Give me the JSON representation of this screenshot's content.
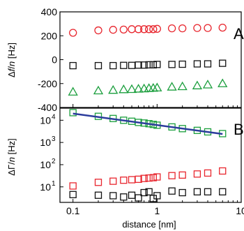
{
  "chart_data": [
    {
      "type": "scatter",
      "panel_label": "A",
      "ylabel_pre": "Δ",
      "ylabel_var": "f",
      "ylabel_mid": "/",
      "ylabel_var2": "n",
      "ylabel_unit": " [Hz]",
      "ylim": [
        -400,
        400
      ],
      "yticks": [
        400,
        200,
        0,
        -200,
        -400
      ],
      "yticklabels": [
        "400",
        "200",
        "0",
        "-200",
        "-400"
      ],
      "xscale": "log",
      "xlim": [
        0.07,
        10
      ],
      "grid": false,
      "series": [
        {
          "marker": "circle",
          "color": "#e8262e",
          "x": [
            0.1,
            0.2,
            0.3,
            0.4,
            0.5,
            0.6,
            0.7,
            0.8,
            0.9,
            1.0,
            1.5,
            2.0,
            3.0,
            4.0,
            6.0
          ],
          "y": [
            225,
            245,
            250,
            252,
            255,
            255,
            255,
            255,
            255,
            258,
            262,
            262,
            265,
            265,
            268
          ]
        },
        {
          "marker": "square",
          "color": "#111111",
          "x": [
            0.1,
            0.2,
            0.3,
            0.4,
            0.5,
            0.6,
            0.7,
            0.8,
            0.9,
            1.0,
            1.5,
            2.0,
            3.0,
            4.0,
            6.0
          ],
          "y": [
            -50,
            -50,
            -50,
            -48,
            -48,
            -45,
            -45,
            -43,
            -43,
            -40,
            -40,
            -38,
            -35,
            -35,
            -30
          ]
        },
        {
          "marker": "triangle",
          "color": "#1a9e3c",
          "x": [
            0.1,
            0.2,
            0.3,
            0.4,
            0.5,
            0.6,
            0.7,
            0.8,
            0.9,
            1.0,
            1.5,
            2.0,
            3.0,
            4.0,
            6.0
          ],
          "y": [
            -270,
            -260,
            -255,
            -250,
            -248,
            -245,
            -243,
            -240,
            -238,
            -235,
            -228,
            -225,
            -218,
            -210,
            -200
          ]
        }
      ]
    },
    {
      "type": "scatter",
      "panel_label": "B",
      "ylabel_pre": "ΔΓ/",
      "ylabel_var": "n",
      "ylabel_unit": " [Hz]",
      "yscale": "log",
      "ylim": [
        2,
        35000
      ],
      "yticks": [
        10,
        100,
        1000,
        10000
      ],
      "yticklabels": [
        "10",
        "10",
        "10",
        "10"
      ],
      "yticksup": [
        "1",
        "2",
        "3",
        "4"
      ],
      "xscale": "log",
      "xlim": [
        0.07,
        10
      ],
      "xticks": [
        0.1,
        1,
        10
      ],
      "xticklabels": [
        "0.1",
        "1",
        "10"
      ],
      "xlabel": "distance [nm]",
      "grid": false,
      "series": [
        {
          "marker": "square",
          "color": "#1a9e3c",
          "x": [
            0.1,
            0.2,
            0.3,
            0.4,
            0.5,
            0.6,
            0.7,
            0.8,
            0.9,
            1.0,
            1.5,
            2.0,
            3.0,
            4.0,
            6.0
          ],
          "y": [
            22000,
            15000,
            12000,
            10000,
            9000,
            8000,
            7500,
            7000,
            6500,
            6000,
            5000,
            4200,
            3500,
            3000,
            2500
          ]
        },
        {
          "marker": "square",
          "color": "#e8262e",
          "x": [
            0.1,
            0.2,
            0.3,
            0.4,
            0.5,
            0.6,
            0.7,
            0.8,
            0.9,
            1.0,
            1.5,
            2.0,
            3.0,
            4.0,
            6.0
          ],
          "y": [
            11,
            16,
            18,
            20,
            21,
            22,
            24,
            25,
            26,
            28,
            32,
            34,
            38,
            42,
            52
          ]
        },
        {
          "marker": "square",
          "color": "#111111",
          "x": [
            0.1,
            0.2,
            0.3,
            0.4,
            0.5,
            0.6,
            0.7,
            0.8,
            0.9,
            1.0,
            1.5,
            2.0,
            3.0,
            4.0,
            6.0
          ],
          "y": [
            4.5,
            4.2,
            4.0,
            3.5,
            4.2,
            3.2,
            5.5,
            6.0,
            3.0,
            4.0,
            6.5,
            5.5,
            6.0,
            6.0,
            6.0
          ]
        }
      ],
      "fit": {
        "color": "#2b3c9c",
        "x": [
          0.1,
          6.0
        ],
        "y": [
          20000,
          2400
        ]
      }
    }
  ]
}
